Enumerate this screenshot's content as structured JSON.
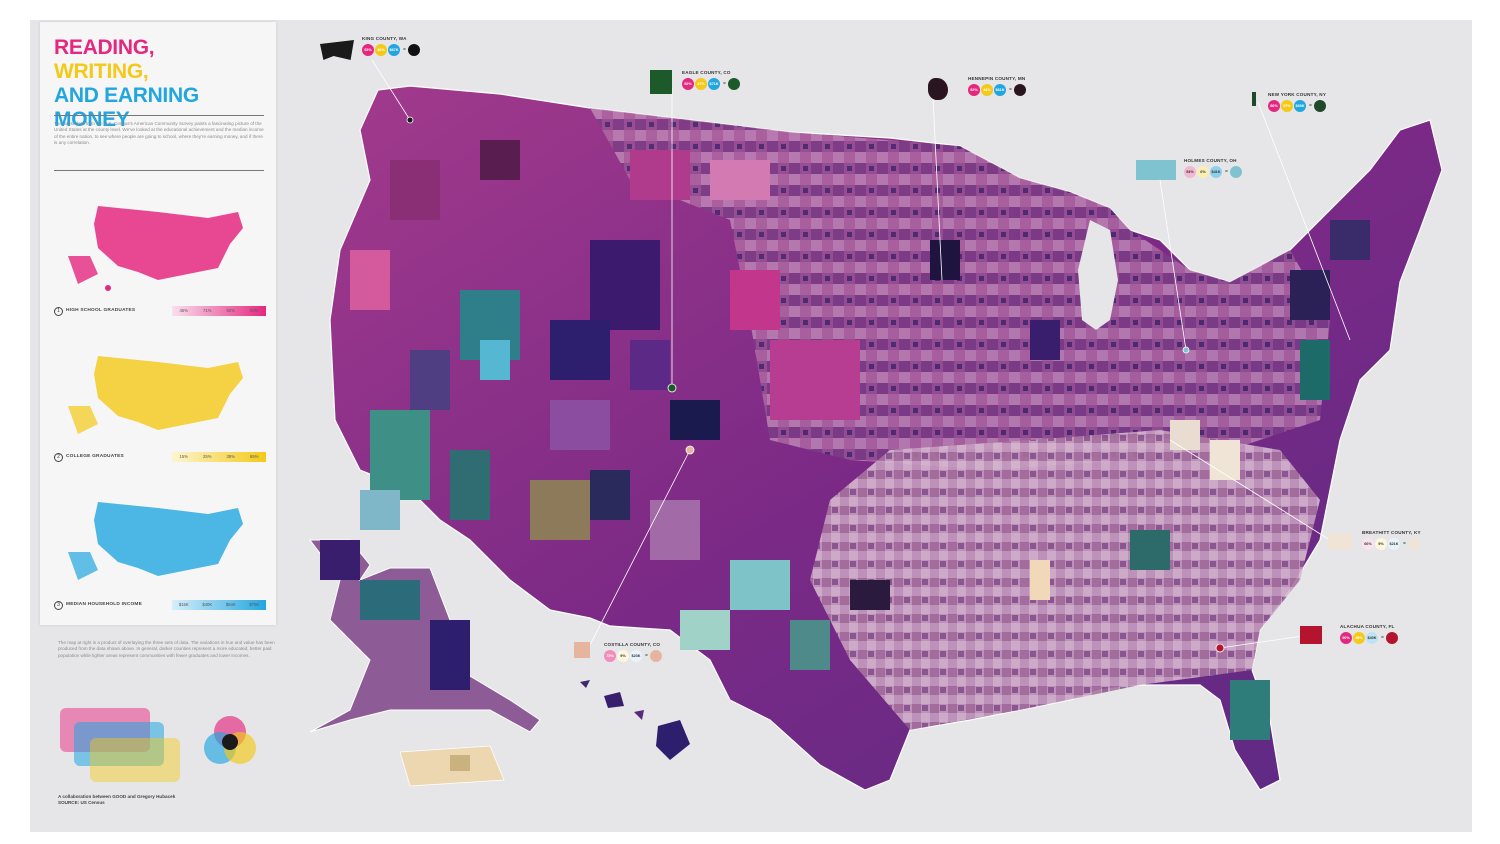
{
  "title": {
    "line1": "READING,",
    "line2": "WRITING,",
    "line3": "AND EARNING MONEY",
    "colors": {
      "line1": "#e5287f",
      "line2": "#f4c917",
      "line3": "#22a6e0"
    }
  },
  "intro_text": "The latest data from the U.S. Census's American Community Survey paints a fascinating picture of the United States at the county level. We've looked at the educational achievement and the median income of the entire nation, to see where people are going to school, where they're earning money, and if there is any correlation.",
  "legends": [
    {
      "number": "1",
      "label": "HIGH SCHOOL GRADUATES",
      "ticks": [
        "45%",
        "71%",
        "82%",
        "93%"
      ],
      "color": "#e5287f"
    },
    {
      "number": "2",
      "label": "COLLEGE GRADUATES",
      "ticks": [
        "15%",
        "25%",
        "38%",
        "65%"
      ],
      "color": "#f4c917"
    },
    {
      "number": "3",
      "label": "MEDIAN HOUSEHOLD INCOME",
      "ticks": [
        "$15K",
        "$40K",
        "$54K",
        "$70K"
      ],
      "color": "#22a6e0"
    }
  ],
  "below_text": "The map at right is a product of overlaying the three sets of data. The variations in hue and value has been produced from the data shown above. In general, darker counties represent a more educated, better paid population while lighter areas represent communities with fewer graduates and lower incomes.",
  "credit": {
    "line1": "A collaboration between GOOD and Gregory Hubacek",
    "line2": "SOURCE: US Census"
  },
  "callouts": [
    {
      "name": "KING COUNTY, WA",
      "values": [
        "93%",
        "46%",
        "$67K"
      ],
      "result_color": "#111111",
      "shape_color": "#1a1a1a"
    },
    {
      "name": "EAGLE COUNTY, CO",
      "values": [
        "92%",
        "47%",
        "$71K"
      ],
      "result_color": "#1c5a2a",
      "shape_color": "#1c5a2a"
    },
    {
      "name": "HENNEPIN COUNTY, MN",
      "values": [
        "92%",
        "44%",
        "$61K"
      ],
      "result_color": "#2a1420",
      "shape_color": "#2a1420"
    },
    {
      "name": "NEW YORK COUNTY, NY",
      "values": [
        "86%",
        "57%",
        "$69K"
      ],
      "result_color": "#1f4a2a",
      "shape_color": "#1f4a2a"
    },
    {
      "name": "HOLMES COUNTY, OH",
      "values": [
        "54%",
        "6%",
        "$41K"
      ],
      "result_color": "#7fc3d0",
      "shape_color": "#7fc3d0"
    },
    {
      "name": "BREATHITT COUNTY, KY",
      "values": [
        "66%",
        "9%",
        "$21K"
      ],
      "result_color": "#efe4d6",
      "shape_color": "#efe4d6"
    },
    {
      "name": "ALACHUA COUNTY, FL",
      "values": [
        "90%",
        "39%",
        "$40K"
      ],
      "result_color": "#b4142e",
      "shape_color": "#b4142e"
    },
    {
      "name": "COSTILLA COUNTY, CO",
      "values": [
        "73%",
        "9%",
        "$23K"
      ],
      "result_color": "#e5b5a0",
      "shape_color": "#e5b5a0"
    }
  ]
}
